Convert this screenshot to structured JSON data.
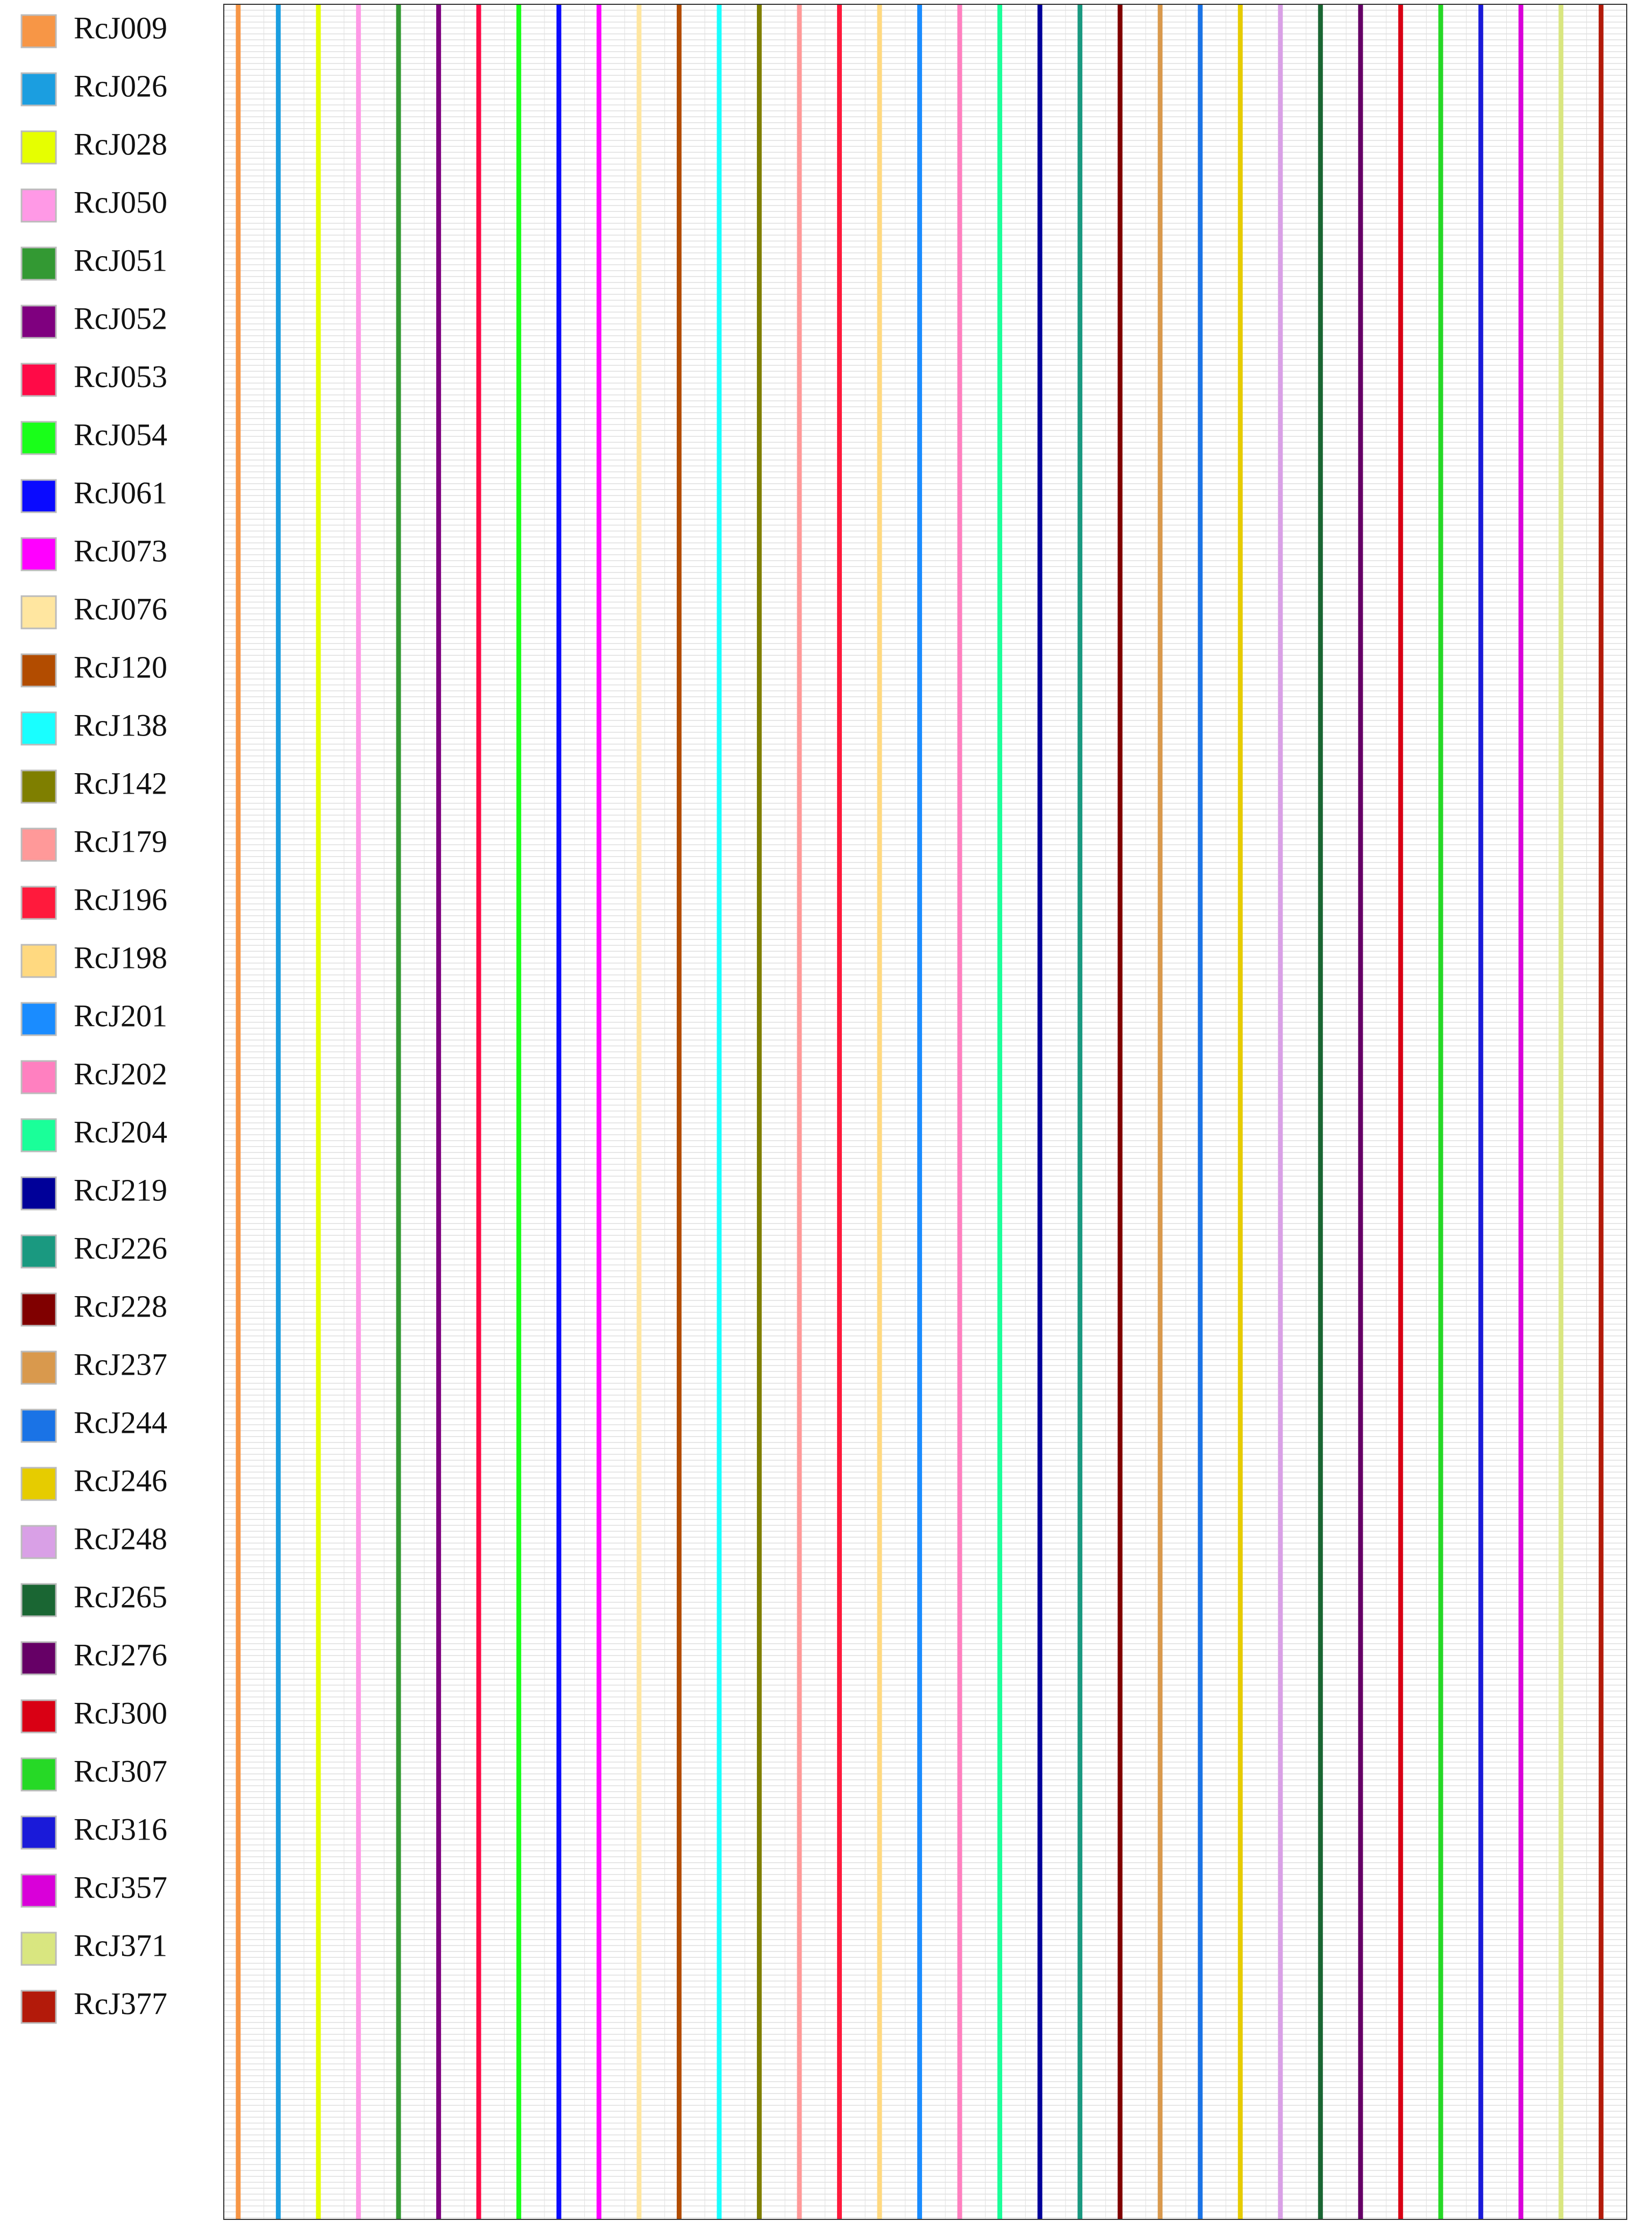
{
  "legend": {
    "items": [
      {
        "label": "RcJ009",
        "color": "#f79646"
      },
      {
        "label": "RcJ026",
        "color": "#1b9ee0"
      },
      {
        "label": "RcJ028",
        "color": "#e6ff00"
      },
      {
        "label": "RcJ050",
        "color": "#ff99e6"
      },
      {
        "label": "RcJ051",
        "color": "#339933"
      },
      {
        "label": "RcJ052",
        "color": "#7f007f"
      },
      {
        "label": "RcJ053",
        "color": "#ff0a47"
      },
      {
        "label": "RcJ054",
        "color": "#19ff19"
      },
      {
        "label": "RcJ061",
        "color": "#0a0aff"
      },
      {
        "label": "RcJ073",
        "color": "#ff00ff"
      },
      {
        "label": "RcJ076",
        "color": "#ffe6a0"
      },
      {
        "label": "RcJ120",
        "color": "#b24c00"
      },
      {
        "label": "RcJ138",
        "color": "#19ffff"
      },
      {
        "label": "RcJ142",
        "color": "#7f7f00"
      },
      {
        "label": "RcJ179",
        "color": "#ff9999"
      },
      {
        "label": "RcJ196",
        "color": "#ff1a3c"
      },
      {
        "label": "RcJ198",
        "color": "#ffd980"
      },
      {
        "label": "RcJ201",
        "color": "#1a8cff"
      },
      {
        "label": "RcJ202",
        "color": "#ff80c0"
      },
      {
        "label": "RcJ204",
        "color": "#1aff99"
      },
      {
        "label": "RcJ219",
        "color": "#000099"
      },
      {
        "label": "RcJ226",
        "color": "#1a9980"
      },
      {
        "label": "RcJ228",
        "color": "#800000"
      },
      {
        "label": "RcJ237",
        "color": "#d9994d"
      },
      {
        "label": "RcJ244",
        "color": "#1a73e6"
      },
      {
        "label": "RcJ246",
        "color": "#e6cc00"
      },
      {
        "label": "RcJ248",
        "color": "#d9a0e6"
      },
      {
        "label": "RcJ265",
        "color": "#1a6633"
      },
      {
        "label": "RcJ276",
        "color": "#660066"
      },
      {
        "label": "RcJ300",
        "color": "#d90014"
      },
      {
        "label": "RcJ307",
        "color": "#26d926"
      },
      {
        "label": "RcJ316",
        "color": "#1a1ad9"
      },
      {
        "label": "RcJ357",
        "color": "#d900d9"
      },
      {
        "label": "RcJ371",
        "color": "#d9e680"
      },
      {
        "label": "RcJ377",
        "color": "#b31a0a"
      }
    ]
  }
}
